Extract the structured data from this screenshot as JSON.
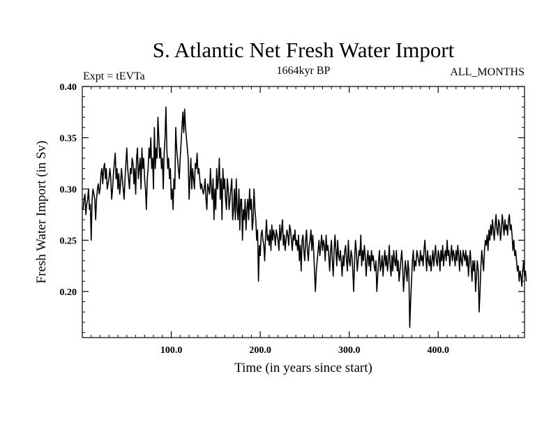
{
  "chart_data": {
    "type": "line",
    "title": "S. Atlantic Net Fresh Water Import",
    "subtitle_left": "Expt = tEVTa",
    "subtitle_center": "1664kyr BP",
    "subtitle_right": "ALL_MONTHS",
    "xlabel": "Time (in years since start)",
    "ylabel": "Fresh Water Import (in Sv)",
    "xlim": [
      0,
      497
    ],
    "ylim": [
      0.155,
      0.4
    ],
    "x_ticks": [
      100,
      200,
      300,
      400
    ],
    "x_tick_labels": [
      "100.0",
      "200.0",
      "300.0",
      "400.0"
    ],
    "y_ticks": [
      0.2,
      0.25,
      0.3,
      0.35,
      0.4
    ],
    "y_tick_labels": [
      "0.20",
      "0.25",
      "0.30",
      "0.35",
      "0.40"
    ],
    "grid": false,
    "color": "#000000",
    "series": [
      {
        "name": "Net Fresh Water Import",
        "x_start": 1,
        "x_step": 1,
        "values": [
          0.28,
          0.29,
          0.295,
          0.275,
          0.285,
          0.29,
          0.3,
          0.28,
          0.285,
          0.25,
          0.29,
          0.3,
          0.295,
          0.29,
          0.27,
          0.29,
          0.3,
          0.305,
          0.295,
          0.3,
          0.315,
          0.32,
          0.305,
          0.32,
          0.325,
          0.31,
          0.32,
          0.3,
          0.305,
          0.31,
          0.32,
          0.31,
          0.29,
          0.3,
          0.315,
          0.325,
          0.335,
          0.31,
          0.32,
          0.3,
          0.315,
          0.295,
          0.305,
          0.32,
          0.31,
          0.3,
          0.29,
          0.31,
          0.325,
          0.34,
          0.32,
          0.31,
          0.3,
          0.32,
          0.315,
          0.33,
          0.325,
          0.305,
          0.32,
          0.295,
          0.33,
          0.34,
          0.31,
          0.32,
          0.33,
          0.3,
          0.34,
          0.32,
          0.33,
          0.31,
          0.3,
          0.28,
          0.31,
          0.32,
          0.34,
          0.33,
          0.35,
          0.32,
          0.33,
          0.3,
          0.36,
          0.32,
          0.34,
          0.33,
          0.37,
          0.35,
          0.33,
          0.34,
          0.32,
          0.33,
          0.3,
          0.335,
          0.35,
          0.38,
          0.34,
          0.32,
          0.33,
          0.31,
          0.32,
          0.29,
          0.3,
          0.28,
          0.31,
          0.3,
          0.36,
          0.34,
          0.33,
          0.32,
          0.31,
          0.33,
          0.345,
          0.36,
          0.375,
          0.355,
          0.378,
          0.36,
          0.35,
          0.34,
          0.33,
          0.29,
          0.31,
          0.33,
          0.3,
          0.32,
          0.31,
          0.3,
          0.325,
          0.32,
          0.335,
          0.315,
          0.32,
          0.31,
          0.3,
          0.305,
          0.3,
          0.295,
          0.3,
          0.31,
          0.29,
          0.28,
          0.305,
          0.3,
          0.295,
          0.32,
          0.3,
          0.29,
          0.31,
          0.27,
          0.3,
          0.28,
          0.32,
          0.3,
          0.31,
          0.33,
          0.29,
          0.31,
          0.27,
          0.32,
          0.3,
          0.31,
          0.29,
          0.28,
          0.31,
          0.3,
          0.28,
          0.29,
          0.3,
          0.31,
          0.27,
          0.28,
          0.3,
          0.27,
          0.31,
          0.28,
          0.27,
          0.3,
          0.26,
          0.29,
          0.29,
          0.25,
          0.28,
          0.27,
          0.29,
          0.26,
          0.28,
          0.29,
          0.27,
          0.3,
          0.28,
          0.29,
          0.26,
          0.27,
          0.3,
          0.28,
          0.27,
          0.25,
          0.26,
          0.21,
          0.245,
          0.235,
          0.255,
          0.26,
          0.25,
          0.245,
          0.23,
          0.255,
          0.27,
          0.25,
          0.255,
          0.245,
          0.26,
          0.24,
          0.265,
          0.25,
          0.26,
          0.255,
          0.245,
          0.26,
          0.255,
          0.25,
          0.24,
          0.265,
          0.25,
          0.26,
          0.27,
          0.245,
          0.255,
          0.24,
          0.25,
          0.26,
          0.255,
          0.245,
          0.265,
          0.26,
          0.25,
          0.24,
          0.255,
          0.25,
          0.26,
          0.245,
          0.25,
          0.24,
          0.255,
          0.23,
          0.245,
          0.22,
          0.25,
          0.255,
          0.24,
          0.23,
          0.25,
          0.26,
          0.24,
          0.23,
          0.245,
          0.25,
          0.26,
          0.24,
          0.255,
          0.24,
          0.22,
          0.2,
          0.22,
          0.23,
          0.24,
          0.25,
          0.235,
          0.245,
          0.255,
          0.24,
          0.25,
          0.245,
          0.23,
          0.255,
          0.24,
          0.245,
          0.235,
          0.22,
          0.24,
          0.25,
          0.23,
          0.215,
          0.24,
          0.255,
          0.24,
          0.225,
          0.25,
          0.235,
          0.23,
          0.24,
          0.23,
          0.215,
          0.235,
          0.225,
          0.24,
          0.245,
          0.23,
          0.22,
          0.25,
          0.23,
          0.225,
          0.24,
          0.235,
          0.22,
          0.2,
          0.23,
          0.25,
          0.24,
          0.22,
          0.23,
          0.24,
          0.235,
          0.255,
          0.225,
          0.24,
          0.23,
          0.245,
          0.235,
          0.215,
          0.23,
          0.24,
          0.225,
          0.235,
          0.22,
          0.24,
          0.23,
          0.235,
          0.225,
          0.22,
          0.23,
          0.2,
          0.215,
          0.23,
          0.24,
          0.22,
          0.225,
          0.235,
          0.215,
          0.23,
          0.24,
          0.225,
          0.235,
          0.22,
          0.23,
          0.245,
          0.225,
          0.215,
          0.235,
          0.22,
          0.24,
          0.23,
          0.225,
          0.24,
          0.22,
          0.23,
          0.21,
          0.22,
          0.23,
          0.24,
          0.225,
          0.2,
          0.215,
          0.23,
          0.22,
          0.21,
          0.23,
          0.22,
          0.165,
          0.19,
          0.21,
          0.23,
          0.24,
          0.22,
          0.23,
          0.225,
          0.24,
          0.235,
          0.23,
          0.225,
          0.24,
          0.23,
          0.235,
          0.225,
          0.24,
          0.25,
          0.235,
          0.22,
          0.24,
          0.23,
          0.225,
          0.235,
          0.22,
          0.23,
          0.24,
          0.225,
          0.235,
          0.245,
          0.23,
          0.225,
          0.24,
          0.235,
          0.22,
          0.24,
          0.23,
          0.245,
          0.225,
          0.235,
          0.24,
          0.23,
          0.25,
          0.235,
          0.24,
          0.225,
          0.235,
          0.245,
          0.23,
          0.24,
          0.235,
          0.225,
          0.24,
          0.23,
          0.245,
          0.235,
          0.22,
          0.24,
          0.23,
          0.225,
          0.24,
          0.235,
          0.23,
          0.24,
          0.225,
          0.235,
          0.215,
          0.23,
          0.24,
          0.225,
          0.21,
          0.23,
          0.22,
          0.23,
          0.2,
          0.215,
          0.23,
          0.22,
          0.18,
          0.2,
          0.225,
          0.24,
          0.23,
          0.22,
          0.24,
          0.25,
          0.245,
          0.255,
          0.24,
          0.26,
          0.25,
          0.265,
          0.255,
          0.27,
          0.26,
          0.25,
          0.265,
          0.275,
          0.26,
          0.255,
          0.27,
          0.265,
          0.25,
          0.26,
          0.275,
          0.265,
          0.255,
          0.27,
          0.26,
          0.265,
          0.255,
          0.27,
          0.275,
          0.26,
          0.265,
          0.255,
          0.24,
          0.25,
          0.235,
          0.24,
          0.23,
          0.22,
          0.225,
          0.21,
          0.22,
          0.215,
          0.205,
          0.22,
          0.23,
          0.215,
          0.22,
          0.21
        ]
      }
    ]
  }
}
